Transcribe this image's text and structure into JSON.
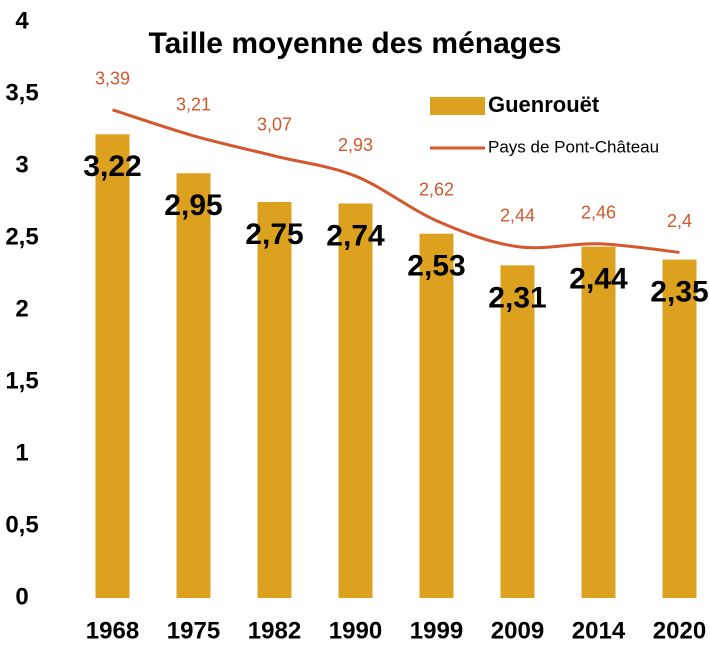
{
  "chart_data": {
    "type": "bar+line",
    "title": "Taille moyenne des ménages",
    "categories": [
      "1968",
      "1975",
      "1982",
      "1990",
      "1999",
      "2009",
      "2014",
      "2020"
    ],
    "series": [
      {
        "name": "Guenrouët",
        "type": "bar",
        "color": "#dca11f",
        "values": [
          3.22,
          2.95,
          2.75,
          2.74,
          2.53,
          2.31,
          2.44,
          2.35
        ],
        "value_labels": [
          "3,22",
          "2,95",
          "2,75",
          "2,74",
          "2,53",
          "2,31",
          "2,44",
          "2,35"
        ]
      },
      {
        "name": "Pays de Pont-Château",
        "type": "line",
        "color": "#d4572e",
        "values": [
          3.39,
          3.21,
          3.07,
          2.93,
          2.62,
          2.44,
          2.46,
          2.4
        ],
        "value_labels": [
          "3,39",
          "3,21",
          "3,07",
          "2,93",
          "2,62",
          "2,44",
          "2,46",
          "2,4"
        ]
      }
    ],
    "ylim": [
      0,
      4
    ],
    "yticks": [
      0,
      {
        "value": 0.5,
        "label": "0,5"
      },
      1,
      {
        "value": 1.5,
        "label": "1,5"
      },
      2,
      {
        "value": 2.5,
        "label": "2,5"
      },
      3,
      {
        "value": 3.5,
        "label": "3,5"
      },
      4
    ],
    "grid": false,
    "legend": "top-right"
  }
}
